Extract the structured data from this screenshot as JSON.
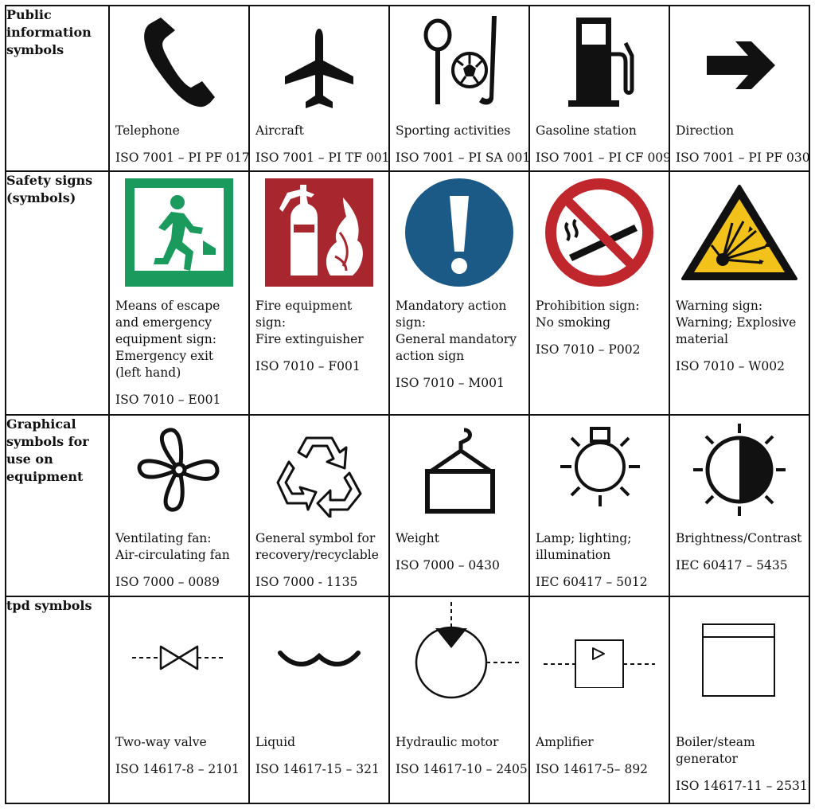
{
  "rows": [
    {
      "header": "Public\ninformation\nsymbols",
      "cells": [
        {
          "name": "Telephone",
          "code": "ISO 7001 – PI PF 017",
          "icon": "telephone-icon"
        },
        {
          "name": "Aircraft",
          "code": "ISO 7001 – PI TF 001",
          "icon": "aircraft-icon"
        },
        {
          "name": "Sporting activities",
          "code": "ISO 7001 – PI SA 001",
          "icon": "sporting-activities-icon"
        },
        {
          "name": "Gasoline station",
          "code": "ISO 7001 – PI CF 009",
          "icon": "fuel-pump-icon"
        },
        {
          "name": "Direction",
          "code": "ISO 7001 – PI PF 030",
          "icon": "arrow-right-icon"
        }
      ]
    },
    {
      "header": "Safety signs\n(symbols)",
      "cells": [
        {
          "name": "Means of escape\nand emergency\nequipment sign:\nEmergency exit\n(left hand)",
          "code": "ISO 7010 – E001",
          "icon": "emergency-exit-icon"
        },
        {
          "name": "Fire equipment\nsign:\nFire extinguisher",
          "code": "ISO 7010 – F001",
          "icon": "fire-extinguisher-icon"
        },
        {
          "name": "Mandatory action\nsign:\nGeneral mandatory\naction sign",
          "code": "ISO 7010 – M001",
          "icon": "mandatory-action-icon"
        },
        {
          "name": "Prohibition sign:\nNo smoking",
          "code": "ISO 7010 – P002",
          "icon": "no-smoking-icon"
        },
        {
          "name": "Warning sign:\nWarning; Explosive\nmaterial",
          "code": "ISO 7010 – W002",
          "icon": "explosive-warning-icon"
        }
      ]
    },
    {
      "header": "Graphical\nsymbols for\nuse on\nequipment",
      "cells": [
        {
          "name": "Ventilating fan:\nAir-circulating fan",
          "code": "ISO 7000 – 0089",
          "icon": "fan-icon"
        },
        {
          "name": "General symbol for\nrecovery/recyclable",
          "code": "ISO 7000 - 1135",
          "icon": "recycle-icon"
        },
        {
          "name": "Weight",
          "code": "ISO 7000 – 0430",
          "icon": "weight-icon"
        },
        {
          "name": "Lamp; lighting;\nillumination",
          "code": "IEC 60417 – 5012",
          "icon": "lamp-icon"
        },
        {
          "name": "Brightness/Contrast",
          "code": "IEC 60417 – 5435",
          "icon": "brightness-contrast-icon"
        }
      ]
    },
    {
      "header": "tpd symbols",
      "cells": [
        {
          "name": "Two-way valve",
          "code": "ISO 14617-8 – 2101",
          "icon": "two-way-valve-icon"
        },
        {
          "name": "Liquid",
          "code": "ISO 14617-15 – 321",
          "icon": "liquid-icon"
        },
        {
          "name": "Hydraulic motor",
          "code": "ISO 14617-10 – 2405",
          "icon": "hydraulic-motor-icon"
        },
        {
          "name": "Amplifier",
          "code": "ISO 14617-5– 892",
          "icon": "amplifier-icon"
        },
        {
          "name": "Boiler/steam\ngenerator",
          "code": "ISO 14617-11 – 2531",
          "icon": "boiler-icon"
        }
      ]
    }
  ],
  "colors": {
    "exit_green": "#1a9a5c",
    "fire_red": "#a8262d",
    "mandatory_blue": "#1b5a87",
    "prohibition_red": "#c0272d",
    "warning_yellow": "#f2c21b"
  }
}
